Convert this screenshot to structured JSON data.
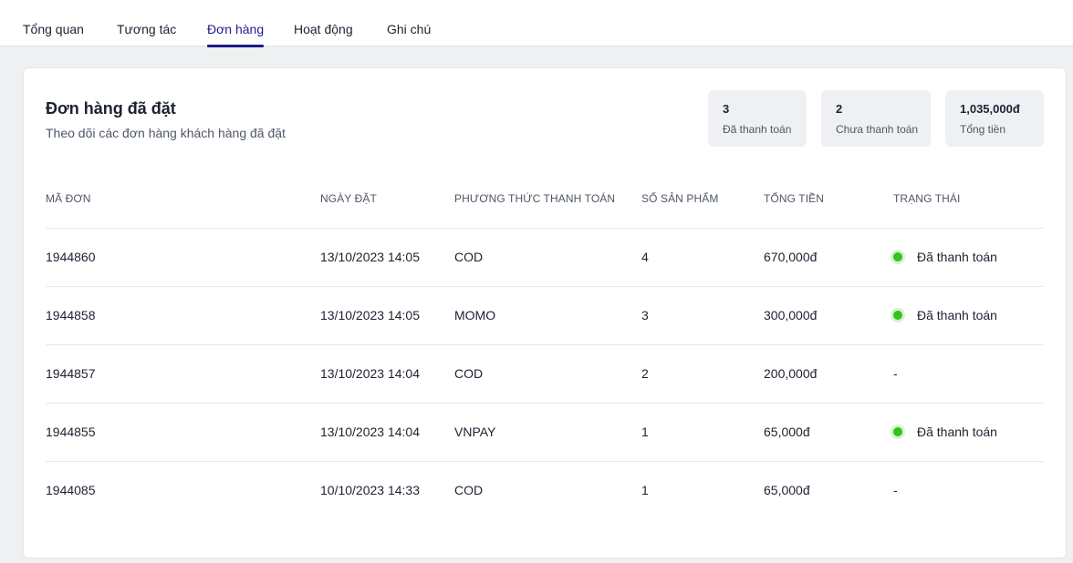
{
  "tabs": [
    {
      "label": "Tổng quan"
    },
    {
      "label": "Tương tác"
    },
    {
      "label": "Đơn hàng"
    },
    {
      "label": "Hoạt động"
    },
    {
      "label": "Ghi chú"
    }
  ],
  "active_tab": "Đơn hàng",
  "accent_color": "#1f1a8a",
  "status_color": "#35c21f",
  "orders": {
    "title": "Đơn hàng đã đặt",
    "subtitle": "Theo dõi các đơn hàng khách hàng đã đặt",
    "stats": [
      {
        "value": "3",
        "label": "Đã thanh toán"
      },
      {
        "value": "2",
        "label": "Chưa thanh toán"
      },
      {
        "value": "1,035,000đ",
        "label": "Tổng tiền"
      }
    ],
    "columns": [
      "Mã đơn",
      "Ngày đặt",
      "Phương thức thanh toán",
      "Số sản phẩm",
      "Tổng tiền",
      "Trạng thái"
    ],
    "rows": [
      {
        "id": "1944860",
        "date": "13/10/2023 14:05",
        "method": "COD",
        "qty": "4",
        "total": "670,000đ",
        "status": "Đã thanh toán",
        "paid": true
      },
      {
        "id": "1944858",
        "date": "13/10/2023 14:05",
        "method": "MOMO",
        "qty": "3",
        "total": "300,000đ",
        "status": "Đã thanh toán",
        "paid": true
      },
      {
        "id": "1944857",
        "date": "13/10/2023 14:04",
        "method": "COD",
        "qty": "2",
        "total": "200,000đ",
        "status": "-",
        "paid": false
      },
      {
        "id": "1944855",
        "date": "13/10/2023 14:04",
        "method": "VNPAY",
        "qty": "1",
        "total": "65,000đ",
        "status": "Đã thanh toán",
        "paid": true
      },
      {
        "id": "1944085",
        "date": "10/10/2023 14:33",
        "method": "COD",
        "qty": "1",
        "total": "65,000đ",
        "status": "-",
        "paid": false
      }
    ]
  }
}
